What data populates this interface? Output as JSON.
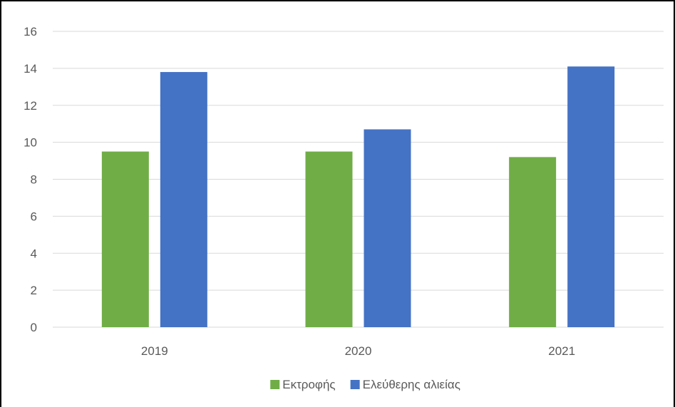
{
  "chart_data": {
    "type": "bar",
    "title": "",
    "xlabel": "",
    "ylabel": "",
    "categories": [
      "2019",
      "2020",
      "2021"
    ],
    "series": [
      {
        "name": "Εκτροφής",
        "values": [
          9.5,
          9.5,
          9.2
        ],
        "color": "#70ad47"
      },
      {
        "name": "Ελεύθερης αλιείας",
        "values": [
          13.8,
          10.7,
          14.1
        ],
        "color": "#4472c4"
      }
    ],
    "ylim": [
      0,
      16
    ],
    "yticks": [
      "0",
      "2",
      "4",
      "6",
      "8",
      "10",
      "12",
      "14",
      "16"
    ],
    "grid": true,
    "legend_position": "bottom",
    "colors": {
      "gridline": "#d9d9d9",
      "axis_text": "#595959"
    }
  }
}
